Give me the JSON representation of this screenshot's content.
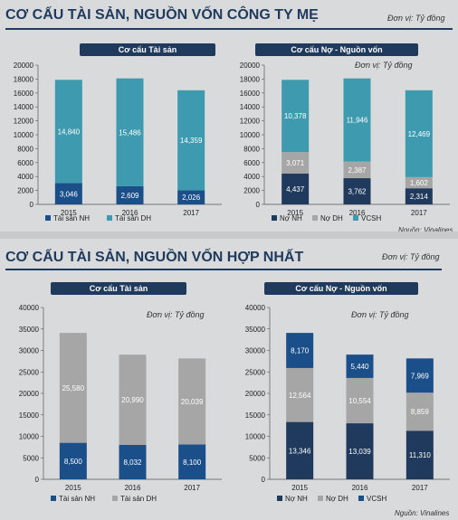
{
  "top": {
    "title": "CƠ CẤU TÀI SẢN, NGUỒN VỐN CÔNG TY MẸ",
    "unit": "Đơn vị: Tỷ đồng",
    "source": "Nguồn: Vinalines"
  },
  "bottom": {
    "title": "CƠ CẤU TÀI SẢN, NGUỒN VỐN HỢP NHẤT",
    "unit": "Đơn vị: Tỷ đồng",
    "source": "Nguồn: Vinalines"
  },
  "colors": {
    "ts_nh": "#1a4f8a",
    "ts_dh_top": "#3e9aae",
    "ts_dh_bottom": "#a6a6a6",
    "no_nh": "#1f3a5c",
    "no_dh": "#a6a6a6",
    "vcsh_top": "#3e9aae",
    "vcsh_bottom": "#1a4f8a"
  },
  "chart_data": [
    {
      "type": "bar",
      "stacked": true,
      "title": "Cơ cấu Tài sản",
      "unit_label": "",
      "categories": [
        "2015",
        "2016",
        "2017"
      ],
      "ylim": [
        0,
        20000
      ],
      "yticks": [
        0,
        2000,
        4000,
        6000,
        8000,
        10000,
        12000,
        14000,
        16000,
        18000,
        20000
      ],
      "series": [
        {
          "name": "Tài sản NH",
          "values": [
            3046,
            2609,
            2026
          ],
          "labels": [
            "3,046",
            "2,609",
            "2,026"
          ]
        },
        {
          "name": "Tài sản DH",
          "values": [
            14840,
            15486,
            14359
          ],
          "labels": [
            "14,840",
            "15,486",
            "14,359"
          ]
        }
      ]
    },
    {
      "type": "bar",
      "stacked": true,
      "title": "Cơ cấu Nợ - Nguồn vốn",
      "unit_label": "Đơn vị: Tỷ đồng",
      "categories": [
        "2015",
        "2016",
        "2017"
      ],
      "ylim": [
        0,
        20000
      ],
      "yticks": [
        0,
        2000,
        4000,
        6000,
        8000,
        10000,
        12000,
        14000,
        16000,
        18000,
        20000
      ],
      "series": [
        {
          "name": "Nợ NH",
          "values": [
            4437,
            3762,
            2314
          ],
          "labels": [
            "4,437",
            "3,762",
            "2,314"
          ]
        },
        {
          "name": "Nợ DH",
          "values": [
            3071,
            2387,
            1602
          ],
          "labels": [
            "3,071",
            "2,387",
            "1,602"
          ]
        },
        {
          "name": "VCSH",
          "values": [
            10378,
            11946,
            12469
          ],
          "labels": [
            "10,378",
            "11,946",
            "12,469"
          ]
        }
      ]
    },
    {
      "type": "bar",
      "stacked": true,
      "title": "Cơ cấu Tài sản",
      "unit_label": "Đơn vị: Tỷ đồng",
      "categories": [
        "2015",
        "2016",
        "2017"
      ],
      "ylim": [
        0,
        40000
      ],
      "yticks": [
        0,
        5000,
        10000,
        15000,
        20000,
        25000,
        30000,
        35000,
        40000
      ],
      "series": [
        {
          "name": "Tài sản NH",
          "values": [
            8500,
            8032,
            8100
          ],
          "labels": [
            "8,500",
            "8,032",
            "8,100"
          ]
        },
        {
          "name": "Tài sản DH",
          "values": [
            25580,
            20990,
            20039
          ],
          "labels": [
            "25,580",
            "20,990",
            "20,039"
          ]
        }
      ]
    },
    {
      "type": "bar",
      "stacked": true,
      "title": "Cơ cấu Nợ - Nguồn vốn",
      "unit_label": "Đơn vị: Tỷ đồng",
      "categories": [
        "2015",
        "2016",
        "2017"
      ],
      "ylim": [
        0,
        40000
      ],
      "yticks": [
        0,
        5000,
        10000,
        15000,
        20000,
        25000,
        30000,
        35000,
        40000
      ],
      "series": [
        {
          "name": "Nợ NH",
          "values": [
            13346,
            13039,
            11310
          ],
          "labels": [
            "13,346",
            "13,039",
            "11,310"
          ]
        },
        {
          "name": "Nợ DH",
          "values": [
            12564,
            10554,
            8859
          ],
          "labels": [
            "12,564",
            "10,554",
            "8,859"
          ]
        },
        {
          "name": "VCSH",
          "values": [
            8170,
            5440,
            7969
          ],
          "labels": [
            "8,170",
            "5,440",
            "7,969"
          ]
        }
      ]
    }
  ]
}
